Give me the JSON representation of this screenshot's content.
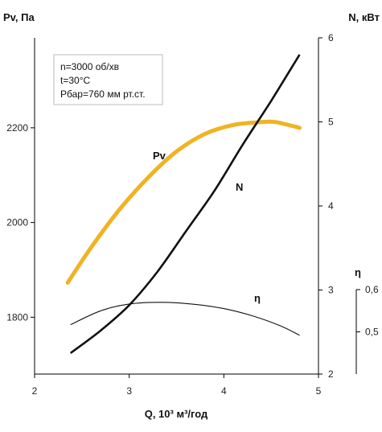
{
  "chart_data": {
    "type": "line",
    "xlabel": "Q, 10³ м³/год",
    "ylabel_left": "Pv, Па",
    "ylabel_right": "N, кВт",
    "ylabel_eta": "η",
    "xlim": [
      2,
      5
    ],
    "ylim_left": [
      1680,
      2390
    ],
    "ylim_right": [
      2,
      6
    ],
    "ylim_eta": [
      0.4,
      0.6
    ],
    "x_ticks": [
      2,
      3,
      4,
      5
    ],
    "y_ticks_left": [
      1800,
      2000,
      2200
    ],
    "y_ticks_right": [
      2,
      3,
      4,
      5,
      6
    ],
    "eta_ticks": [
      0.5,
      0.6
    ],
    "eta_tick_labels": [
      "0,5",
      "0,6"
    ],
    "annotation": [
      "n=3000 об/хв",
      "t=30°C",
      "Pбар=760 мм рт.ст."
    ],
    "series": [
      {
        "name": "Pv",
        "axis": "left",
        "color": "#F0B323",
        "x": [
          2.35,
          2.6,
          2.9,
          3.2,
          3.5,
          3.8,
          4.1,
          4.4,
          4.55,
          4.8
        ],
        "y": [
          1873,
          1948,
          2028,
          2095,
          2150,
          2187,
          2206,
          2212,
          2212,
          2200
        ]
      },
      {
        "name": "N",
        "axis": "right",
        "color": "#111111",
        "x": [
          2.38,
          2.7,
          3.0,
          3.3,
          3.6,
          3.9,
          4.2,
          4.5,
          4.8
        ],
        "y": [
          2.25,
          2.52,
          2.82,
          3.22,
          3.7,
          4.18,
          4.73,
          5.25,
          5.8
        ]
      },
      {
        "name": "η",
        "axis": "eta",
        "color": "#111111",
        "x": [
          2.38,
          2.7,
          3.0,
          3.35,
          3.7,
          4.0,
          4.3,
          4.6,
          4.8
        ],
        "y": [
          0.517,
          0.55,
          0.566,
          0.57,
          0.565,
          0.555,
          0.538,
          0.514,
          0.492
        ]
      }
    ],
    "grid": false
  }
}
